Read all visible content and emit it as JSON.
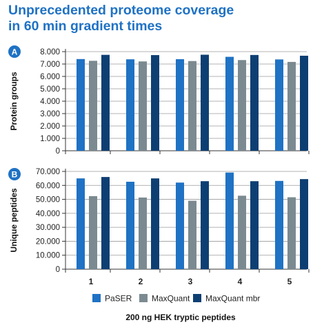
{
  "title_lines": [
    "Unprecedented proteome coverage",
    "in 60 min gradient times"
  ],
  "colors": {
    "title": "#1f72c4",
    "PaSER": "#1f72c4",
    "MaxQuant": "#7b8a91",
    "MaxQuant mbr": "#0e3f73",
    "badge": "#1f72c4"
  },
  "chart_data": [
    {
      "type": "bar",
      "panel": "A",
      "ylabel": "Protein groups",
      "xlabel": "",
      "categories": [
        "1",
        "2",
        "3",
        "4",
        "5"
      ],
      "ylim": [
        0,
        8000
      ],
      "yticks": [
        0,
        1000,
        2000,
        3000,
        4000,
        5000,
        6000,
        7000,
        8000
      ],
      "ytick_labels": [
        "0",
        "1.000",
        "2.000",
        "3.000",
        "4.000",
        "5.000",
        "6.000",
        "7.000",
        "8.000"
      ],
      "show_xtick_labels": false,
      "series": [
        {
          "name": "PaSER",
          "values": [
            7400,
            7380,
            7390,
            7580,
            7370
          ]
        },
        {
          "name": "MaxQuant",
          "values": [
            7260,
            7210,
            7240,
            7320,
            7170
          ]
        },
        {
          "name": "MaxQuant mbr",
          "values": [
            7740,
            7720,
            7750,
            7730,
            7670
          ]
        }
      ]
    },
    {
      "type": "bar",
      "panel": "B",
      "ylabel": "Unique peptides",
      "xlabel": "200 ng HEK tryptic peptides",
      "categories": [
        "1",
        "2",
        "3",
        "4",
        "5"
      ],
      "ylim": [
        0,
        70000
      ],
      "yticks": [
        0,
        10000,
        20000,
        30000,
        40000,
        50000,
        60000,
        70000
      ],
      "ytick_labels": [
        "0",
        "10.000",
        "20.000",
        "30.000",
        "40.000",
        "50.000",
        "60.000",
        "70.000"
      ],
      "show_xtick_labels": true,
      "series": [
        {
          "name": "PaSER",
          "values": [
            65000,
            62600,
            62000,
            69200,
            63200
          ]
        },
        {
          "name": "MaxQuant",
          "values": [
            52300,
            51300,
            49000,
            52600,
            51500
          ]
        },
        {
          "name": "MaxQuant mbr",
          "values": [
            66000,
            65000,
            63000,
            63000,
            64500
          ]
        }
      ]
    }
  ],
  "legend": [
    "PaSER",
    "MaxQuant",
    "MaxQuant mbr"
  ]
}
